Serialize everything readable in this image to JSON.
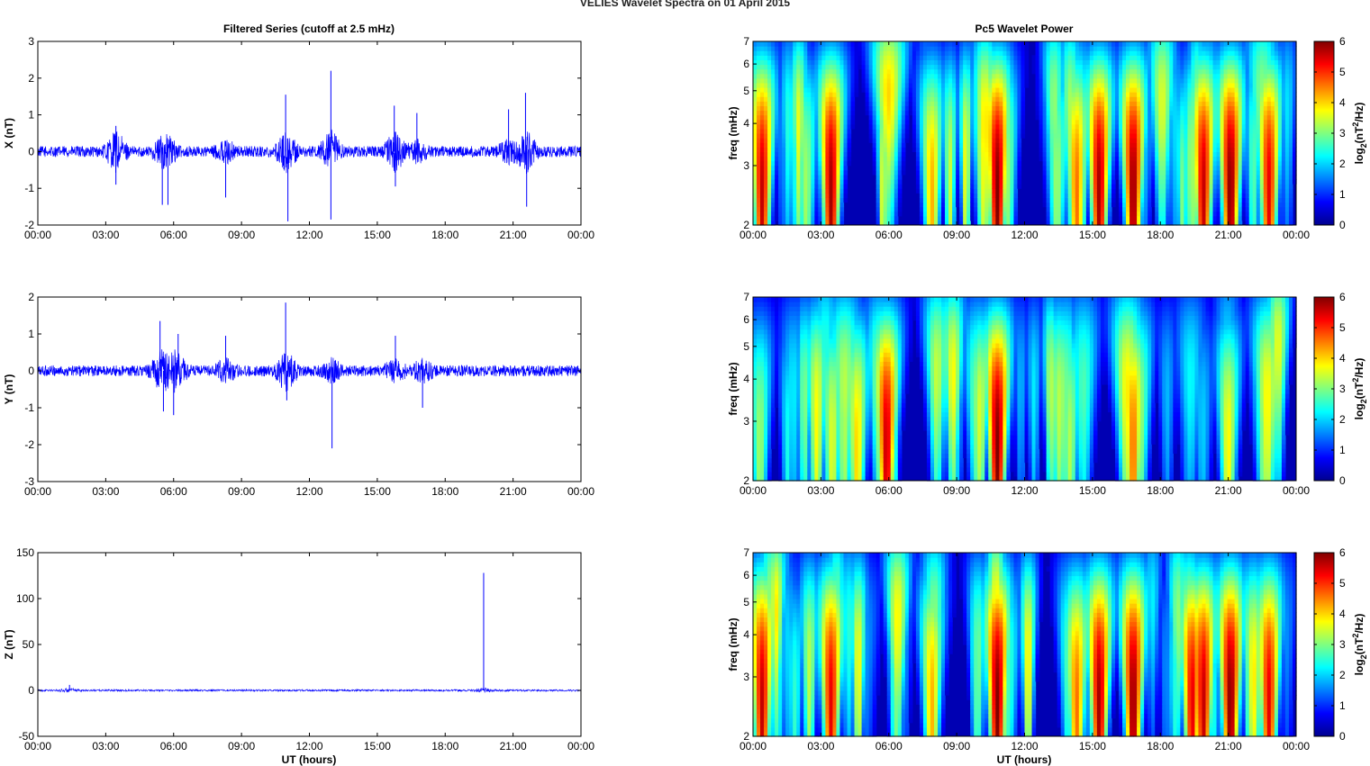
{
  "figure": {
    "title": "VELIES Wavelet Spectra on 01 April     2015",
    "left_title": "Filtered Series (cutoff at 2.5 mHz)",
    "right_title": "Pc5 Wavelet Power",
    "xlabel": "UT (hours)",
    "x_ticks": [
      "00:00",
      "03:00",
      "06:00",
      "09:00",
      "12:00",
      "15:00",
      "18:00",
      "21:00",
      "00:00"
    ],
    "freq_label": "freq (mHz)",
    "colorbar_label": "log2(nT2/Hz)"
  },
  "colors": {
    "series_line": "#0000ff",
    "colormap": "jet"
  },
  "chart_data": [
    {
      "type": "line",
      "title": "Filtered Series (cutoff at 2.5 mHz)",
      "ylabel": "X (nT)",
      "xlim_hours": [
        0,
        24
      ],
      "ylim": [
        -2,
        3
      ],
      "y_ticks": [
        -2,
        -1,
        0,
        1,
        2,
        3
      ],
      "noise_amplitude": 0.15,
      "peaks": [
        {
          "t": 3.45,
          "v": 0.7
        },
        {
          "t": 3.45,
          "v": -0.9
        },
        {
          "t": 5.5,
          "v": -1.45
        },
        {
          "t": 5.75,
          "v": -1.45
        },
        {
          "t": 8.3,
          "v": -1.25
        },
        {
          "t": 10.95,
          "v": 1.55
        },
        {
          "t": 11.05,
          "v": -1.9
        },
        {
          "t": 12.95,
          "v": 2.2
        },
        {
          "t": 12.95,
          "v": -1.85
        },
        {
          "t": 15.75,
          "v": 1.25
        },
        {
          "t": 15.8,
          "v": -0.95
        },
        {
          "t": 16.75,
          "v": 1.05
        },
        {
          "t": 20.8,
          "v": 1.15
        },
        {
          "t": 21.55,
          "v": 1.6
        },
        {
          "t": 21.6,
          "v": -1.5
        }
      ]
    },
    {
      "type": "line",
      "ylabel": "Y (nT)",
      "xlim_hours": [
        0,
        24
      ],
      "ylim": [
        -3,
        2
      ],
      "y_ticks": [
        -3,
        -2,
        -1,
        0,
        1,
        2
      ],
      "noise_amplitude": 0.15,
      "peaks": [
        {
          "t": 5.4,
          "v": 1.35
        },
        {
          "t": 5.55,
          "v": -1.1
        },
        {
          "t": 6.0,
          "v": -1.2
        },
        {
          "t": 6.2,
          "v": 1.0
        },
        {
          "t": 8.3,
          "v": 0.95
        },
        {
          "t": 10.95,
          "v": 1.85
        },
        {
          "t": 11.0,
          "v": -0.8
        },
        {
          "t": 13.0,
          "v": -2.1
        },
        {
          "t": 15.8,
          "v": 0.95
        },
        {
          "t": 17.0,
          "v": -1.0
        }
      ]
    },
    {
      "type": "line",
      "ylabel": "Z (nT)",
      "xlabel": "UT (hours)",
      "xlim_hours": [
        0,
        24
      ],
      "ylim": [
        -50,
        150
      ],
      "y_ticks": [
        -50,
        0,
        50,
        100,
        150
      ],
      "noise_amplitude": 1.0,
      "peaks": [
        {
          "t": 1.4,
          "v": 6
        },
        {
          "t": 19.7,
          "v": 128
        }
      ]
    },
    {
      "type": "heatmap",
      "title": "Pc5 Wavelet Power",
      "ylabel": "freq (mHz)",
      "xlim_hours": [
        0,
        24
      ],
      "ylim_mhz": [
        2,
        7
      ],
      "y_scale": "log",
      "y_ticks": [
        2,
        3,
        4,
        5,
        6,
        7
      ],
      "colorbar": {
        "label": "log2(nT2/Hz)",
        "range": [
          0,
          6
        ],
        "ticks": [
          0,
          1,
          2,
          3,
          4,
          5,
          6
        ]
      },
      "hotspots": [
        {
          "t": 0.4,
          "p": 5.6
        },
        {
          "t": 3.45,
          "p": 5.8
        },
        {
          "t": 7.9,
          "p": 4.2
        },
        {
          "t": 10.8,
          "p": 6.0
        },
        {
          "t": 14.3,
          "p": 4.6
        },
        {
          "t": 15.3,
          "p": 5.8
        },
        {
          "t": 16.8,
          "p": 5.9
        },
        {
          "t": 19.9,
          "p": 5.6
        },
        {
          "t": 21.1,
          "p": 6.0
        },
        {
          "t": 22.8,
          "p": 5.4
        }
      ]
    },
    {
      "type": "heatmap",
      "ylabel": "freq (mHz)",
      "xlim_hours": [
        0,
        24
      ],
      "ylim_mhz": [
        2,
        7
      ],
      "y_scale": "log",
      "y_ticks": [
        2,
        3,
        4,
        5,
        6,
        7
      ],
      "colorbar": {
        "label": "log2(nT2/Hz)",
        "range": [
          0,
          6
        ],
        "ticks": [
          0,
          1,
          2,
          3,
          4,
          5,
          6
        ]
      },
      "hotspots": [
        {
          "t": 0.3,
          "p": 3.2
        },
        {
          "t": 3.5,
          "p": 3.6
        },
        {
          "t": 4.6,
          "p": 4.0
        },
        {
          "t": 5.9,
          "p": 5.6
        },
        {
          "t": 10.8,
          "p": 6.0
        },
        {
          "t": 14.0,
          "p": 3.3
        },
        {
          "t": 16.8,
          "p": 4.6
        },
        {
          "t": 21.0,
          "p": 3.8
        },
        {
          "t": 22.6,
          "p": 3.2
        }
      ]
    },
    {
      "type": "heatmap",
      "ylabel": "freq (mHz)",
      "xlim_hours": [
        0,
        24
      ],
      "ylim_mhz": [
        2,
        7
      ],
      "y_scale": "log",
      "y_ticks": [
        2,
        3,
        4,
        5,
        6,
        7
      ],
      "colorbar": {
        "label": "log2(nT2/Hz)",
        "range": [
          0,
          6
        ],
        "ticks": [
          0,
          1,
          2,
          3,
          4,
          5,
          6
        ]
      },
      "hotspots": [
        {
          "t": 0.4,
          "p": 5.6
        },
        {
          "t": 3.45,
          "p": 5.4
        },
        {
          "t": 7.9,
          "p": 4.2
        },
        {
          "t": 10.8,
          "p": 6.0
        },
        {
          "t": 14.3,
          "p": 4.6
        },
        {
          "t": 15.3,
          "p": 5.8
        },
        {
          "t": 16.8,
          "p": 5.9
        },
        {
          "t": 19.4,
          "p": 5.4
        },
        {
          "t": 19.9,
          "p": 5.6
        },
        {
          "t": 21.1,
          "p": 6.0
        },
        {
          "t": 22.8,
          "p": 5.4
        }
      ]
    }
  ]
}
